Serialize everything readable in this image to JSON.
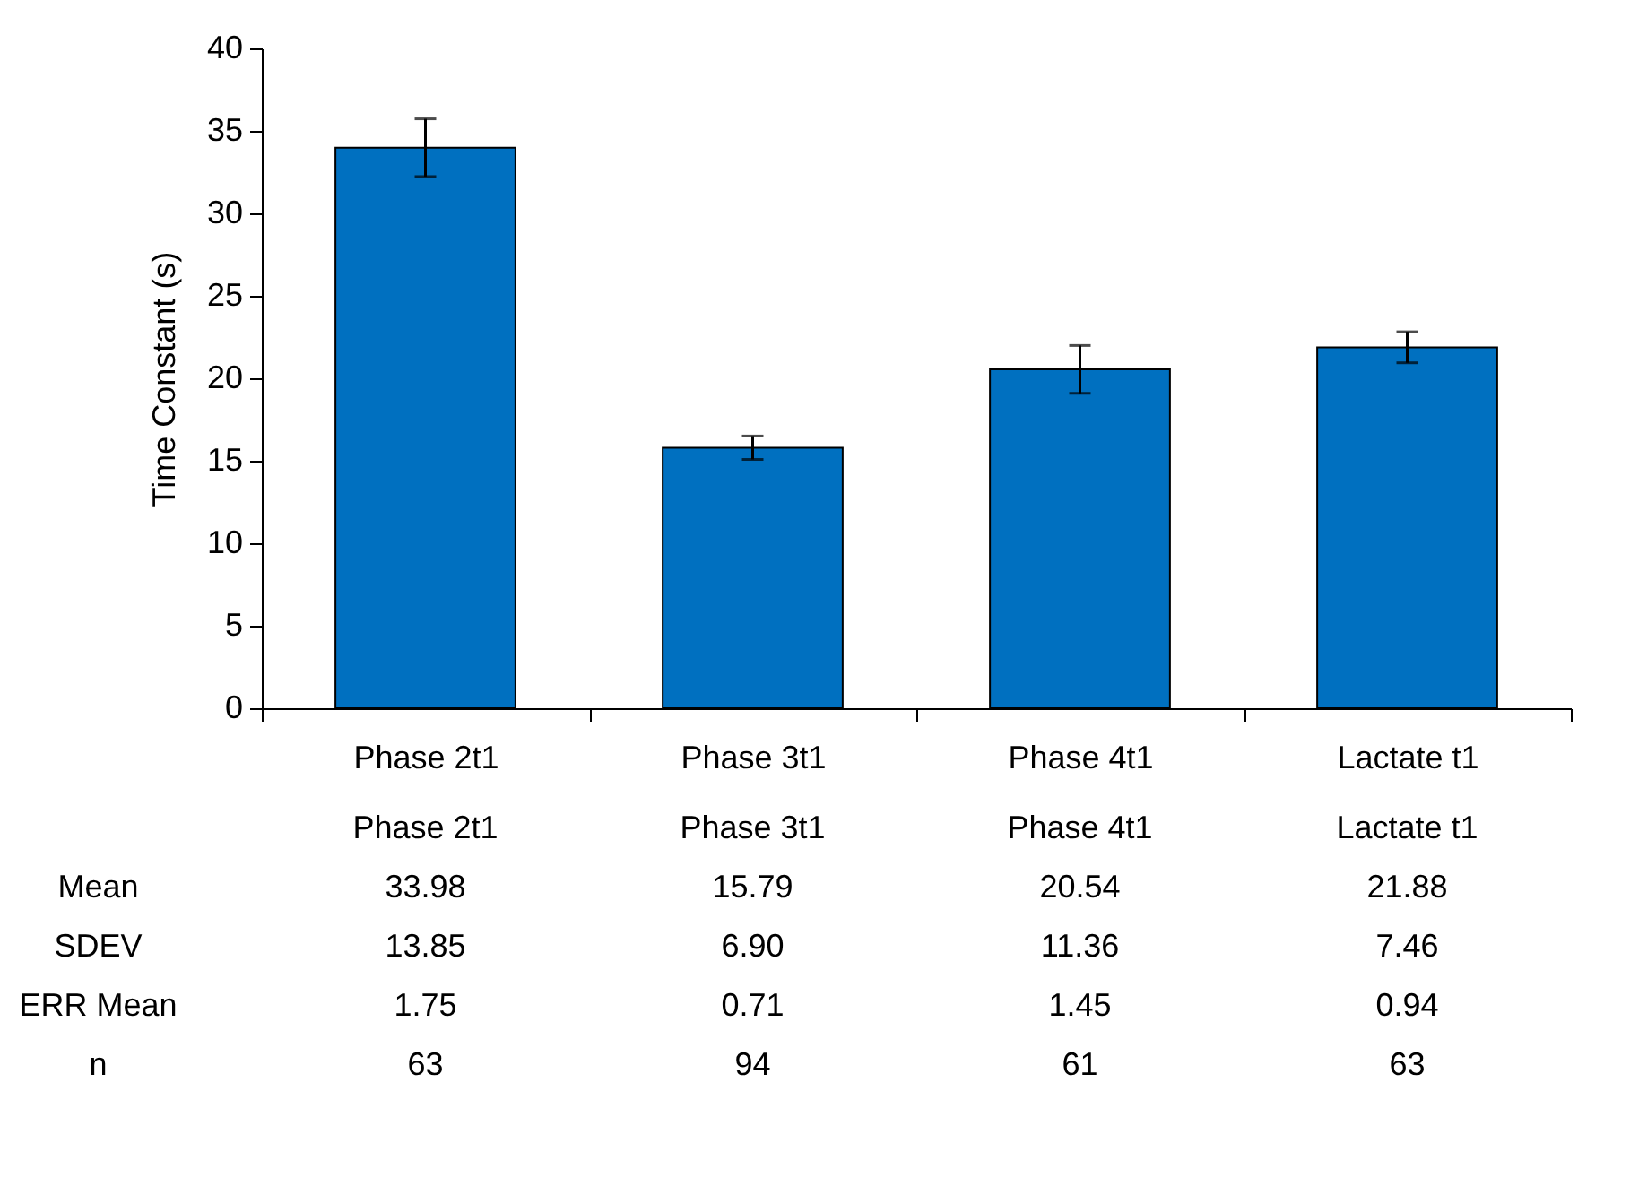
{
  "chart_data": {
    "type": "bar",
    "ylabel": "Time Constant (s)",
    "categories": [
      "Phase 2t1",
      "Phase 3t1",
      "Phase 4t1",
      "Lactate t1"
    ],
    "values": [
      33.98,
      15.79,
      20.54,
      21.88
    ],
    "errors": [
      1.75,
      0.71,
      1.45,
      0.94
    ],
    "color": "#0070c0",
    "ylim": [
      0,
      40
    ],
    "yticks": [
      0,
      5,
      10,
      15,
      20,
      25,
      30,
      35,
      40
    ],
    "grid": false,
    "annotations": [
      "Mean",
      "33.98",
      "15.79",
      "20.54",
      "21.88",
      "SDEV",
      "13.85",
      "6.90",
      "11.36",
      "7.46",
      "ERR Mean",
      "1.75",
      "0.71",
      "1.45",
      "0.94",
      "n",
      "63",
      "94",
      "61",
      "63"
    ]
  }
}
